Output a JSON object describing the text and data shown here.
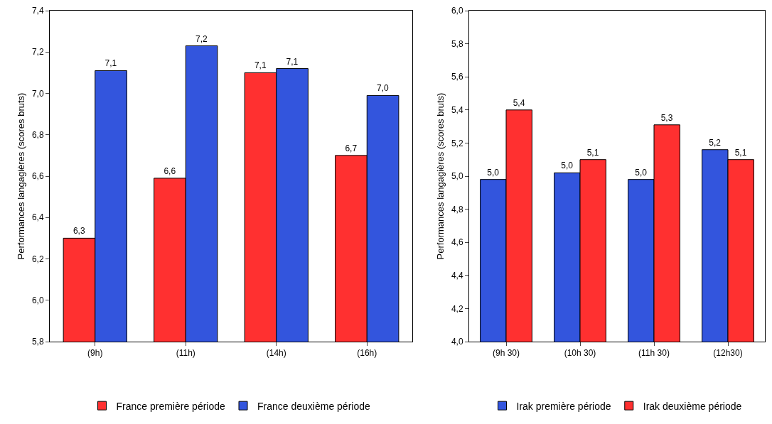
{
  "chart_data": [
    {
      "type": "bar",
      "ylabel": "Performances langagières (scores bruts)",
      "categories": [
        "(9h)",
        "(11h)",
        "(14h)",
        "(16h)"
      ],
      "series": [
        {
          "name": "France première période",
          "color": "#ff3030",
          "values": [
            6.3,
            6.59,
            7.1,
            6.7
          ],
          "value_labels": [
            "6,3",
            "6,6",
            "7,1",
            "6,7"
          ]
        },
        {
          "name": "France deuxième période",
          "color": "#3355dd",
          "values": [
            7.11,
            7.23,
            7.12,
            6.99
          ],
          "value_labels": [
            "7,1",
            "7,2",
            "7,1",
            "7,0"
          ]
        }
      ],
      "ylim": [
        5.8,
        7.4
      ],
      "yticks": [
        {
          "value": 5.8,
          "label": "5,8"
        },
        {
          "value": 6.0,
          "label": "6,0"
        },
        {
          "value": 6.2,
          "label": "6,2"
        },
        {
          "value": 6.4,
          "label": "6,4"
        },
        {
          "value": 6.6,
          "label": "6,6"
        },
        {
          "value": 6.8,
          "label": "6,8"
        },
        {
          "value": 7.0,
          "label": "7,0"
        },
        {
          "value": 7.2,
          "label": "7,2"
        },
        {
          "value": 7.4,
          "label": "7,4"
        }
      ],
      "grid": false,
      "legend": "bottom"
    },
    {
      "type": "bar",
      "ylabel": "Performances langagières (scores bruts)",
      "categories": [
        "(9h 30)",
        "(10h 30)",
        "(11h 30)",
        "(12h30)"
      ],
      "series": [
        {
          "name": "Irak première période",
          "color": "#3355dd",
          "values": [
            4.98,
            5.02,
            4.98,
            5.16
          ],
          "value_labels": [
            "5,0",
            "5,0",
            "5,0",
            "5,2"
          ]
        },
        {
          "name": "Irak deuxième période",
          "color": "#ff3030",
          "values": [
            5.4,
            5.1,
            5.31,
            5.1
          ],
          "value_labels": [
            "5,4",
            "5,1",
            "5,3",
            "5,1"
          ]
        }
      ],
      "ylim": [
        4.0,
        6.0
      ],
      "yticks": [
        {
          "value": 4.0,
          "label": "4,0"
        },
        {
          "value": 4.2,
          "label": "4,2"
        },
        {
          "value": 4.4,
          "label": "4,4"
        },
        {
          "value": 4.6,
          "label": "4,6"
        },
        {
          "value": 4.8,
          "label": "4,8"
        },
        {
          "value": 5.0,
          "label": "5,0"
        },
        {
          "value": 5.2,
          "label": "5,2"
        },
        {
          "value": 5.4,
          "label": "5,4"
        },
        {
          "value": 5.6,
          "label": "5,6"
        },
        {
          "value": 5.8,
          "label": "5,8"
        },
        {
          "value": 6.0,
          "label": "6,0"
        }
      ],
      "grid": false,
      "legend": "bottom"
    }
  ]
}
